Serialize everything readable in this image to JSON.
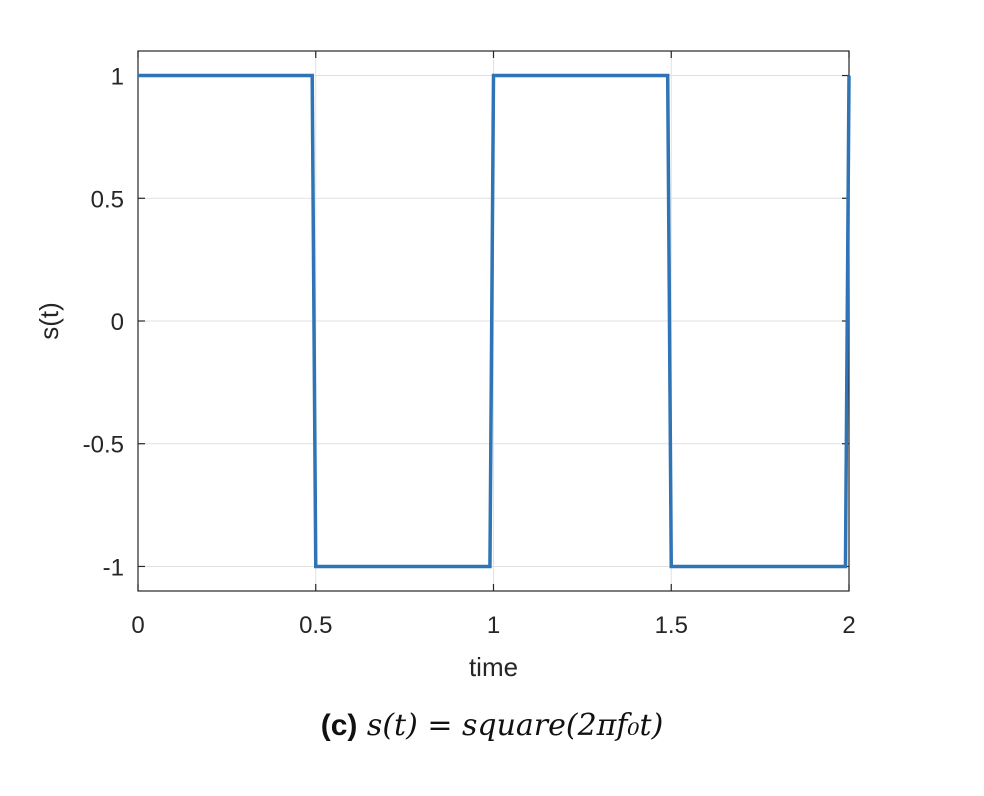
{
  "chart_data": {
    "type": "line",
    "xlabel": "time",
    "ylabel": "s(t)",
    "xlim": [
      0,
      2
    ],
    "ylim": [
      -1.1,
      1.1
    ],
    "xticks": [
      0,
      0.5,
      1,
      1.5,
      2
    ],
    "xtick_labels": [
      "0",
      "0.5",
      "1",
      "1.5",
      "2"
    ],
    "yticks": [
      -1,
      -0.5,
      0,
      0.5,
      1
    ],
    "ytick_labels": [
      "-1",
      "-0.5",
      "0",
      "0.5",
      "1"
    ],
    "grid": true,
    "series": [
      {
        "color": "#2f74b5",
        "x": [
          0,
          0.49,
          0.5,
          0.99,
          1.0,
          1.49,
          1.5,
          1.99,
          2.0
        ],
        "y": [
          1,
          1,
          -1,
          -1,
          1,
          1,
          -1,
          -1,
          1
        ]
      }
    ]
  },
  "caption": {
    "label": "(c)",
    "text": "s(t) = square(2πf₀t)"
  }
}
